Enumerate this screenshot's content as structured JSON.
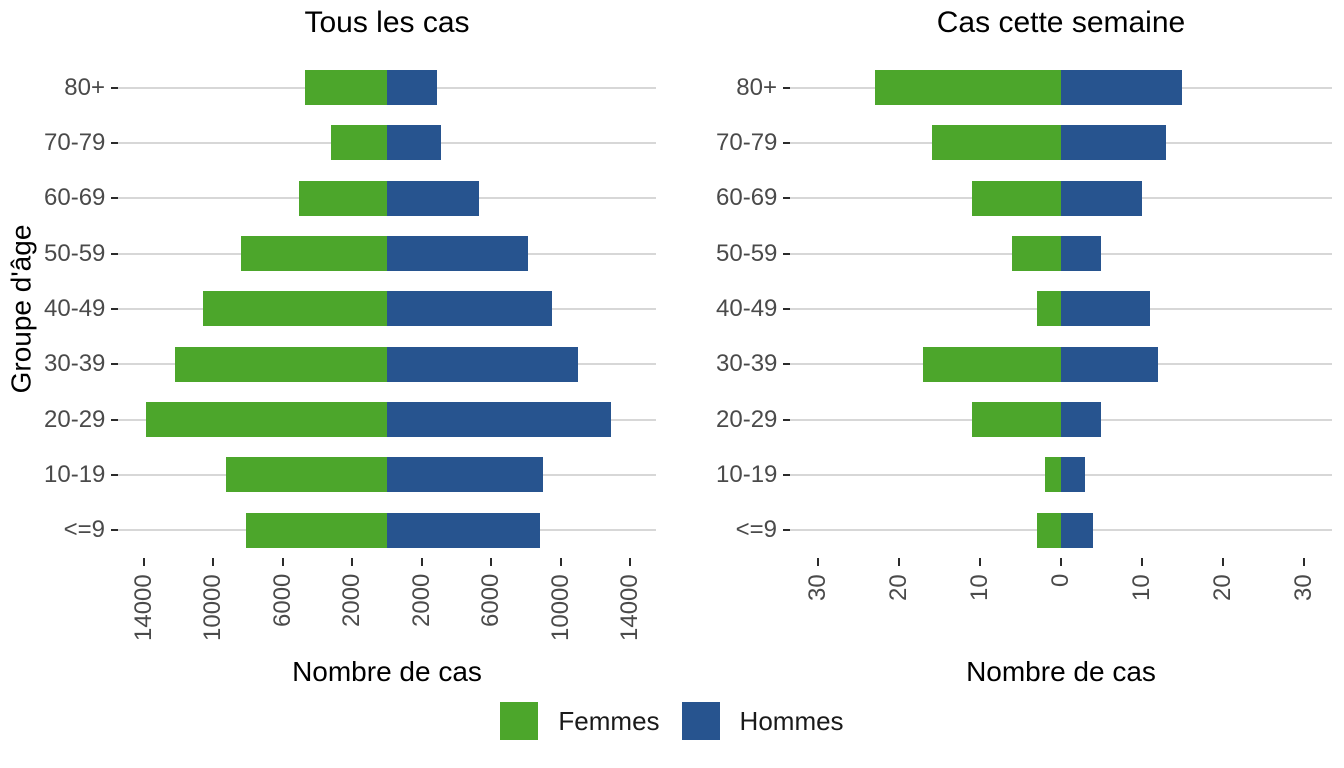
{
  "legend": {
    "items": [
      {
        "label": "Femmes",
        "color": "#4CA62B"
      },
      {
        "label": "Hommes",
        "color": "#27548F"
      }
    ]
  },
  "colors": {
    "gridline": "#D7D7D7",
    "tick_mark": "#2B2B2B",
    "tick_text": "#4A4A4A",
    "background": "#FFFFFF"
  },
  "chart_data": [
    {
      "type": "bar",
      "subtype": "population-pyramid-horizontal",
      "title": "Tous les cas",
      "xlabel": "Nombre de cas",
      "ylabel": "Groupe d'âge",
      "categories": [
        "80+",
        "70-79",
        "60-69",
        "50-59",
        "40-49",
        "30-39",
        "20-29",
        "10-19",
        "<=9"
      ],
      "series": [
        {
          "name": "Femmes",
          "direction": "left",
          "values": [
            4700,
            3200,
            5100,
            8400,
            10600,
            12200,
            13900,
            9300,
            8100
          ]
        },
        {
          "name": "Hommes",
          "direction": "right",
          "values": [
            2900,
            3100,
            5300,
            8100,
            9500,
            11000,
            12900,
            9000,
            8800
          ]
        }
      ],
      "xlim": [
        -15500,
        15500
      ],
      "xticks": [
        {
          "value": -14000,
          "label": "14000"
        },
        {
          "value": -10000,
          "label": "10000"
        },
        {
          "value": -6000,
          "label": "6000"
        },
        {
          "value": -2000,
          "label": "2000"
        },
        {
          "value": 2000,
          "label": "2000"
        },
        {
          "value": 6000,
          "label": "6000"
        },
        {
          "value": 10000,
          "label": "10000"
        },
        {
          "value": 14000,
          "label": "14000"
        }
      ],
      "grid": "horizontal-major-only",
      "legend_position": "bottom-shared"
    },
    {
      "type": "bar",
      "subtype": "population-pyramid-horizontal",
      "title": "Cas cette semaine",
      "xlabel": "Nombre de cas",
      "ylabel": "",
      "categories": [
        "80+",
        "70-79",
        "60-69",
        "50-59",
        "40-49",
        "30-39",
        "20-29",
        "10-19",
        "<=9"
      ],
      "series": [
        {
          "name": "Femmes",
          "direction": "left",
          "values": [
            23,
            16,
            11,
            6,
            3,
            17,
            11,
            2,
            3
          ]
        },
        {
          "name": "Hommes",
          "direction": "right",
          "values": [
            15,
            13,
            10,
            5,
            11,
            12,
            5,
            3,
            4
          ]
        }
      ],
      "xlim": [
        -33.5,
        33.5
      ],
      "xticks": [
        {
          "value": -30,
          "label": "30"
        },
        {
          "value": -20,
          "label": "20"
        },
        {
          "value": -10,
          "label": "10"
        },
        {
          "value": 0,
          "label": "0"
        },
        {
          "value": 10,
          "label": "10"
        },
        {
          "value": 20,
          "label": "20"
        },
        {
          "value": 30,
          "label": "30"
        }
      ],
      "grid": "horizontal-major-only",
      "legend_position": "bottom-shared"
    }
  ]
}
